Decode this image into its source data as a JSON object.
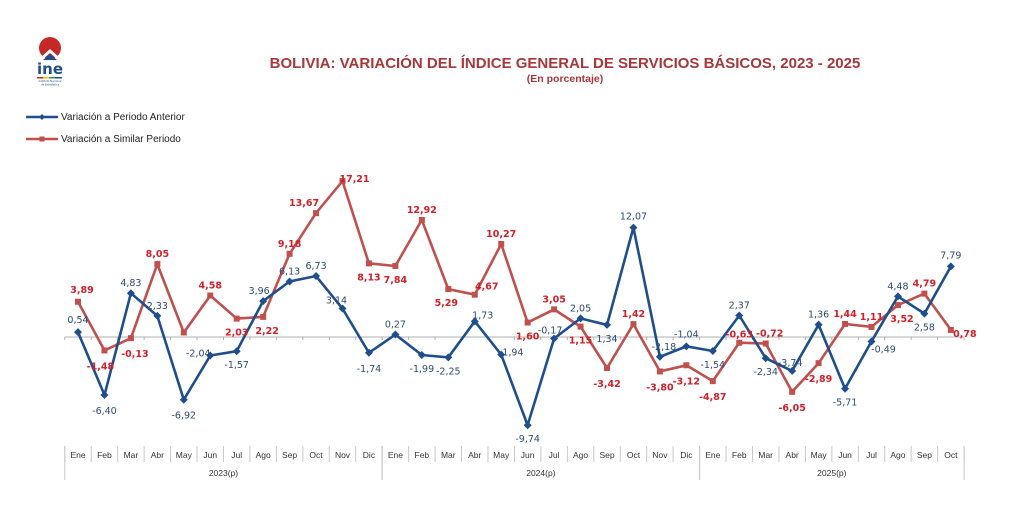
{
  "header": {
    "logo_text": "ine",
    "logo_subtext": "Instituto Nacional de Estadística"
  },
  "colors": {
    "title": "#a8373a",
    "series_anterior": "#1f4e8c",
    "series_similar": "#c0504d",
    "label_anterior": "#2e4a72",
    "label_similar": "#d0202a",
    "axis": "#b0b0b0"
  },
  "chart_data": {
    "type": "line",
    "title": "BOLIVIA: VARIACIÓN DEL ÍNDICE GENERAL DE SERVICIOS BÁSICOS, 2023 - 2025",
    "subtitle": "(En porcentaje)",
    "xlabel": "",
    "ylabel": "",
    "legend_position": "top-left",
    "grid": false,
    "ylim": [
      -11,
      18
    ],
    "categories": [
      "Ene",
      "Feb",
      "Mar",
      "Abr",
      "May",
      "Jun",
      "Jul",
      "Ago",
      "Sep",
      "Oct",
      "Nov",
      "Dic",
      "Ene",
      "Feb",
      "Mar",
      "Abr",
      "May",
      "Jun",
      "Jul",
      "Ago",
      "Sep",
      "Oct",
      "Nov",
      "Dic",
      "Ene",
      "Feb",
      "Mar",
      "Abr",
      "May",
      "Jun",
      "Jul",
      "Ago",
      "Sep",
      "Oct"
    ],
    "year_groups": [
      {
        "label": "2023(p)",
        "count": 12
      },
      {
        "label": "2024(p)",
        "count": 12
      },
      {
        "label": "2025(p)",
        "count": 10
      }
    ],
    "series": [
      {
        "name": "Variación a Periodo Anterior",
        "marker": "diamond",
        "values": [
          0.54,
          -6.4,
          4.83,
          2.33,
          -6.92,
          -2.04,
          -1.57,
          3.96,
          6.13,
          6.73,
          3.14,
          -1.74,
          0.27,
          -1.99,
          -2.25,
          1.73,
          -1.94,
          -9.74,
          -0.17,
          2.05,
          1.34,
          12.07,
          -2.18,
          -1.04,
          -1.54,
          2.37,
          -2.34,
          -3.74,
          1.36,
          -5.71,
          -0.49,
          4.48,
          2.58,
          7.79
        ],
        "labels": [
          "0,54",
          "-6,40",
          "4,83",
          "2,33",
          "-6,92",
          "-2,04",
          "-1,57",
          "3,96",
          "6,13",
          "6,73",
          "3,14",
          "-1,74",
          "0,27",
          "-1,99",
          "-2,25",
          "1,73",
          "-1,94",
          "-9,74",
          "-0,17",
          "2,05",
          "1,34",
          "12,07",
          "-2,18",
          "-1,04",
          "-1,54",
          "2,37",
          "-2,34",
          "-3,74",
          "1,36",
          "-5,71",
          "-0,49",
          "4,48",
          "2,58",
          "7,79"
        ]
      },
      {
        "name": "Variación a Similar Periodo",
        "marker": "square",
        "values": [
          3.89,
          -1.48,
          -0.13,
          8.05,
          0.5,
          4.58,
          2.03,
          2.22,
          9.18,
          13.67,
          17.21,
          8.13,
          7.84,
          12.92,
          5.29,
          4.67,
          10.27,
          1.6,
          3.05,
          1.15,
          -3.42,
          1.42,
          -3.8,
          -3.12,
          -4.87,
          -0.63,
          -0.72,
          -6.05,
          -2.89,
          1.44,
          1.11,
          3.52,
          4.79,
          0.78
        ],
        "labels": [
          "3,89",
          "-1,48",
          "-0,13",
          "8,05",
          "",
          "4,58",
          "2,03",
          "2,22",
          "9,18",
          "13,67",
          "17,21",
          "8,13",
          "7,84",
          "12,92",
          "5,29",
          "4,67",
          "10,27",
          "1,60",
          "3,05",
          "1,15",
          "-3,42",
          "1,42",
          "-3,80",
          "-3,12",
          "-4,87",
          "-0,63",
          "-0,72",
          "-6,05",
          "-2,89",
          "1,44",
          "1,11",
          "3,52",
          "4,79",
          "0,78"
        ]
      }
    ]
  }
}
